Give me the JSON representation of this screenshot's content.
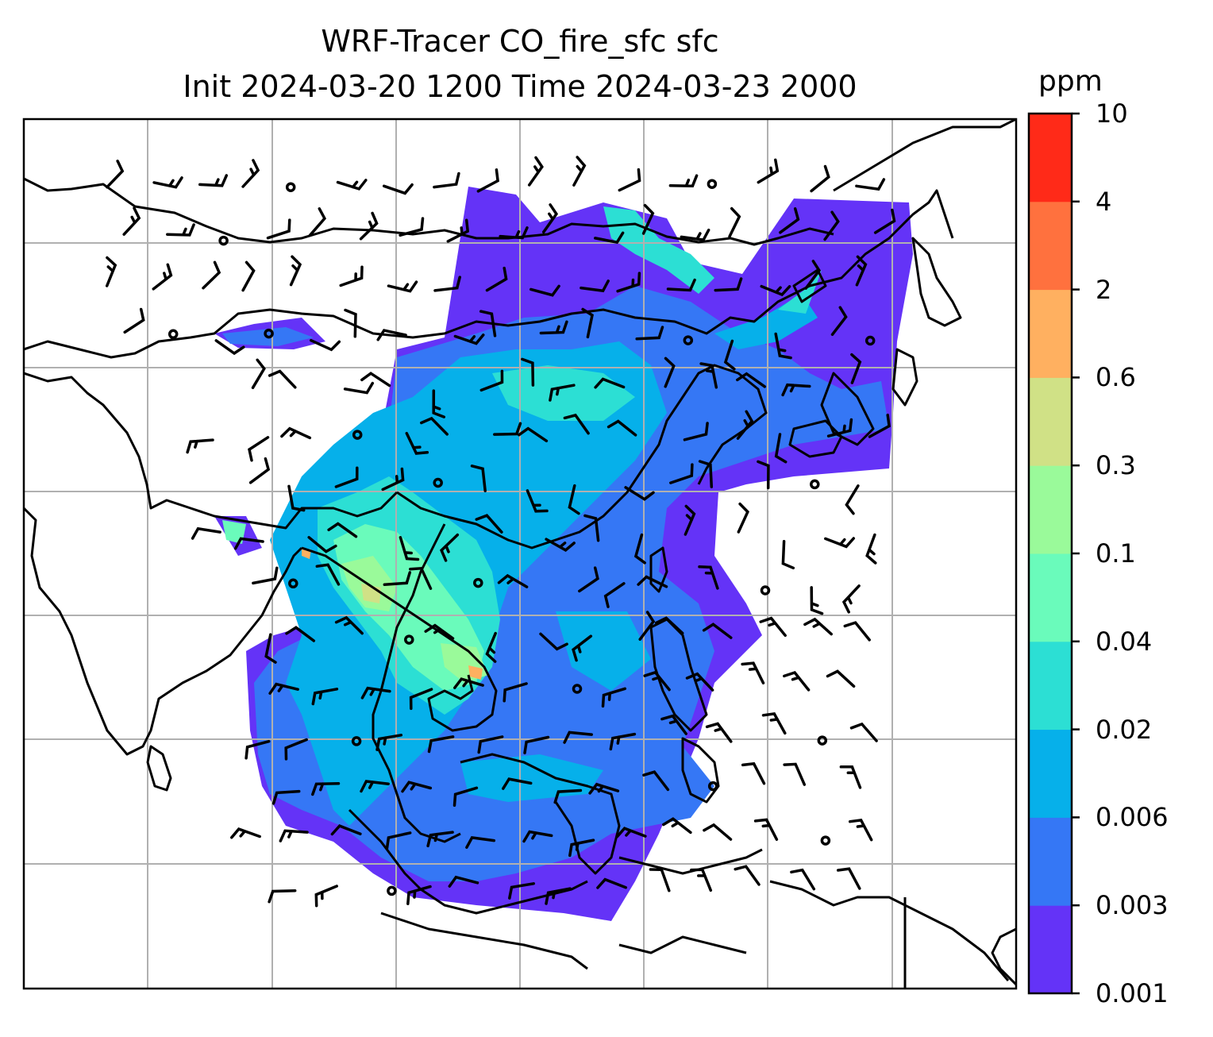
{
  "title_line1": "WRF-Tracer CO_fire_sfc sfc",
  "title_line2": "Init 2024-03-20 1200 Time 2024-03-23 2000",
  "colorbar": {
    "unit": "ppm",
    "levels": [
      "0.001",
      "0.003",
      "0.006",
      "0.02",
      "0.04",
      "0.1",
      "0.3",
      "0.6",
      "2",
      "4",
      "10"
    ],
    "colors": [
      "#6433f7",
      "#3577f5",
      "#06b0ea",
      "#2cdfd4",
      "#6afbbb",
      "#9afa9a",
      "#d0e186",
      "#ffb060",
      "#ff713e",
      "#ff2a18"
    ]
  },
  "map": {
    "type": "filled contour with wind barbs",
    "region": "Southeast and East Asia",
    "field": "CO_fire_sfc",
    "gridlines": true
  }
}
